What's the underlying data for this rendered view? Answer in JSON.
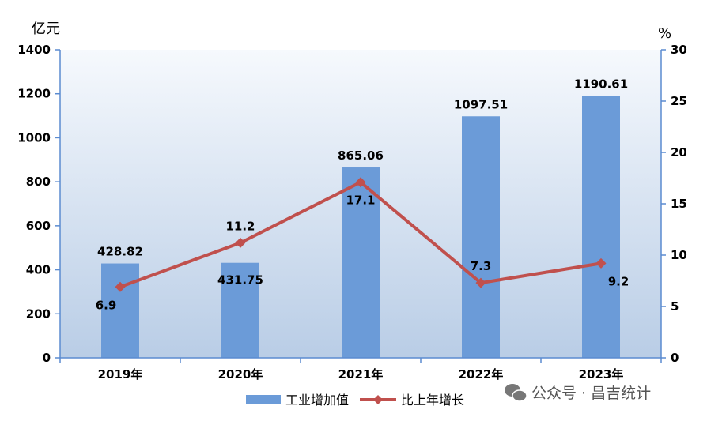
{
  "chart_data": {
    "type": "bar",
    "categories": [
      "2019年",
      "2020年",
      "2021年",
      "2022年",
      "2023年"
    ],
    "series": [
      {
        "name": "工业增加值",
        "type": "bar",
        "axis": "left",
        "values": [
          428.82,
          431.75,
          865.06,
          1097.51,
          1190.61
        ],
        "labels": [
          "428.82",
          "431.75",
          "865.06",
          "1097.51",
          "1190.61"
        ]
      },
      {
        "name": "比上年增长",
        "type": "line",
        "axis": "right",
        "values": [
          6.9,
          11.2,
          17.1,
          7.3,
          9.2
        ],
        "labels": [
          "6.9",
          "11.2",
          "17.1",
          "7.3",
          "9.2"
        ]
      }
    ],
    "left_axis": {
      "unit": "亿元",
      "ylim": [
        0,
        1400
      ],
      "ticks": [
        "0",
        "200",
        "400",
        "600",
        "800",
        "1000",
        "1200",
        "1400"
      ]
    },
    "right_axis": {
      "unit": "%",
      "ylim": [
        0,
        30
      ],
      "ticks": [
        "0",
        "5",
        "10",
        "15",
        "20",
        "25",
        "30"
      ]
    },
    "legend_position": "bottom-center",
    "grid": false,
    "colors": {
      "bar": "#6b9bd8",
      "line": "#c0504d",
      "axis": "#5b8bd0"
    }
  },
  "watermark": "公众号 · 昌吉统计"
}
